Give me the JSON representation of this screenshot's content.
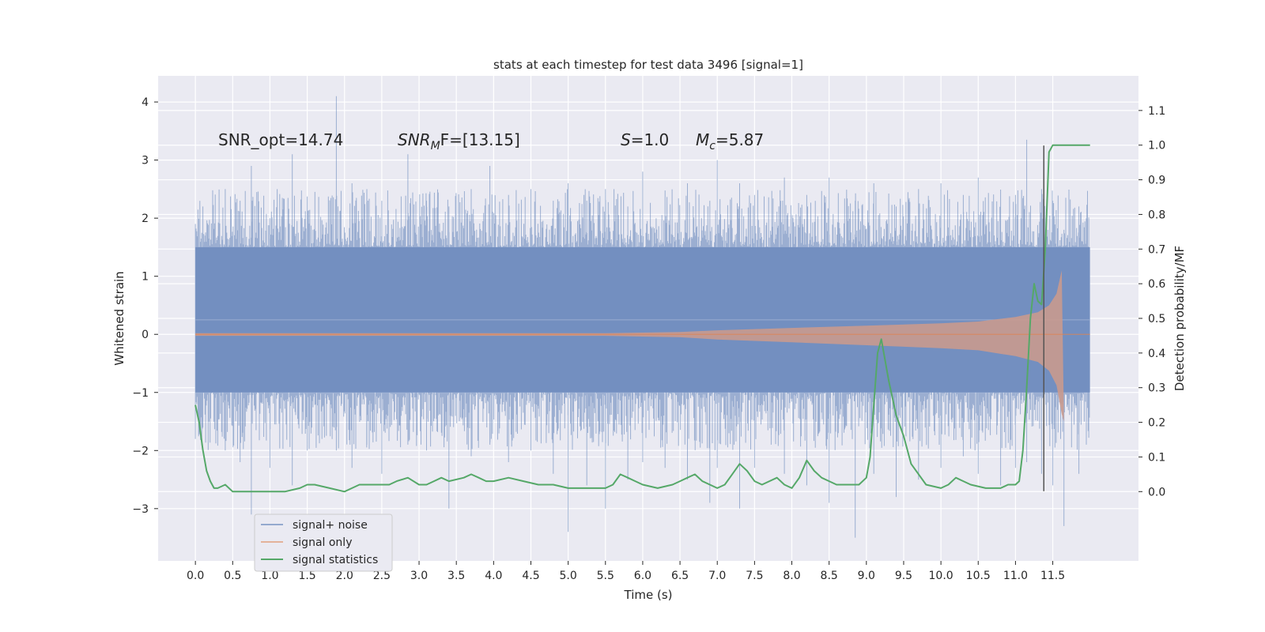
{
  "chart_data": {
    "type": "line",
    "title": "stats at each timestep for test data 3496 [signal=1]",
    "xlabel": "Time (s)",
    "ylabel_left": "Whitened strain",
    "ylabel_right": "Detection probability/MF",
    "xlim": [
      -0.5,
      12.65
    ],
    "ylim_left": [
      -3.9,
      4.45
    ],
    "ylim_right": [
      -0.2,
      1.2
    ],
    "xticks": [
      0.0,
      0.5,
      1.0,
      1.5,
      2.0,
      2.5,
      3.0,
      3.5,
      4.0,
      4.5,
      5.0,
      5.5,
      6.0,
      6.5,
      7.0,
      7.5,
      8.0,
      8.5,
      9.0,
      9.5,
      10.0,
      10.5,
      11.0,
      11.5
    ],
    "xtick_labels": [
      "0.0",
      "0.5",
      "1.0",
      "1.5",
      "2.0",
      "2.5",
      "3.0",
      "3.5",
      "4.0",
      "4.5",
      "5.0",
      "5.5",
      "6.0",
      "6.5",
      "7.0",
      "7.5",
      "8.0",
      "8.5",
      "9.0",
      "9.5",
      "10.0",
      "10.5",
      "11.0",
      "11.5"
    ],
    "yticks_left": [
      -3,
      -2,
      -1,
      0,
      1,
      2,
      3,
      4
    ],
    "ytick_labels_left": [
      "−3",
      "−2",
      "−1",
      "0",
      "1",
      "2",
      "3",
      "4"
    ],
    "yticks_right": [
      0.0,
      0.1,
      0.2,
      0.3,
      0.4,
      0.5,
      0.6,
      0.7,
      0.8,
      0.9,
      1.0,
      1.1
    ],
    "ytick_labels_right": [
      "0.0",
      "0.1",
      "0.2",
      "0.3",
      "0.4",
      "0.5",
      "0.6",
      "0.7",
      "0.8",
      "0.9",
      "1.0",
      "1.1"
    ],
    "grid": true,
    "legend_position": "lower-left",
    "annotations": {
      "snr_opt": "SNR_opt=14.74",
      "snr_mf_var": "SNR",
      "snr_mf_sub": "M",
      "snr_mf_rest": "F=[13.15]",
      "s_var": "S",
      "s_rest": "=1.0",
      "mc_var": "M",
      "mc_sub": "c",
      "mc_rest": "=5.87"
    },
    "marker_line_x": 11.38,
    "series": [
      {
        "name": "signal+ noise",
        "axis": "left",
        "color": "#4c72b0",
        "band_low": -1.0,
        "band_high": 1.5,
        "peaks": [
          [
            0.0,
            1.9,
            -1.8
          ],
          [
            0.1,
            2.2,
            -1.6
          ],
          [
            0.4,
            2.5,
            -2.0
          ],
          [
            0.6,
            2.3,
            -2.2
          ],
          [
            0.75,
            2.9,
            -3.1
          ],
          [
            1.0,
            2.0,
            -2.3
          ],
          [
            1.3,
            3.1,
            -2.6
          ],
          [
            1.5,
            2.2,
            -2.0
          ],
          [
            1.89,
            4.1,
            -2.0
          ],
          [
            2.1,
            2.6,
            -2.3
          ],
          [
            2.3,
            2.5,
            -1.9
          ],
          [
            2.5,
            2.3,
            -2.4
          ],
          [
            2.85,
            3.1,
            -1.9
          ],
          [
            3.1,
            2.3,
            -2.0
          ],
          [
            3.4,
            2.2,
            -3.0
          ],
          [
            3.7,
            2.5,
            -2.1
          ],
          [
            3.95,
            2.9,
            -1.9
          ],
          [
            4.2,
            2.4,
            -2.2
          ],
          [
            4.5,
            2.5,
            -2.0
          ],
          [
            4.8,
            2.3,
            -2.4
          ],
          [
            5.0,
            2.6,
            -3.4
          ],
          [
            5.25,
            2.3,
            -2.6
          ],
          [
            5.5,
            2.5,
            -3.0
          ],
          [
            5.8,
            2.2,
            -2.5
          ],
          [
            6.0,
            2.8,
            -2.2
          ],
          [
            6.3,
            2.4,
            -2.3
          ],
          [
            6.6,
            2.6,
            -2.5
          ],
          [
            6.9,
            2.3,
            -2.9
          ],
          [
            7.0,
            3.0,
            -2.3
          ],
          [
            7.3,
            2.6,
            -3.0
          ],
          [
            7.5,
            2.4,
            -2.3
          ],
          [
            7.9,
            2.7,
            -2.4
          ],
          [
            8.2,
            2.4,
            -2.6
          ],
          [
            8.5,
            2.7,
            -2.9
          ],
          [
            8.85,
            2.3,
            -3.5
          ],
          [
            9.1,
            2.6,
            -2.4
          ],
          [
            9.4,
            2.2,
            -2.8
          ],
          [
            9.7,
            2.5,
            -2.5
          ],
          [
            10.0,
            2.6,
            -2.3
          ],
          [
            10.3,
            2.4,
            -2.1
          ],
          [
            10.5,
            2.7,
            -2.4
          ],
          [
            10.8,
            2.3,
            -2.6
          ],
          [
            11.0,
            2.4,
            -2.3
          ],
          [
            11.15,
            3.35,
            -2.2
          ],
          [
            11.35,
            2.5,
            -2.4
          ],
          [
            11.5,
            2.3,
            -2.6
          ],
          [
            11.65,
            1.8,
            -3.3
          ],
          [
            11.85,
            2.2,
            -2.4
          ],
          [
            11.95,
            2.0,
            -1.9
          ]
        ],
        "x_range": [
          0.0,
          12.0
        ]
      },
      {
        "name": "signal only",
        "axis": "left",
        "color": "#dd8452",
        "envelope": [
          [
            0.0,
            0.02
          ],
          [
            5.5,
            0.02
          ],
          [
            6.5,
            0.04
          ],
          [
            7.0,
            0.07
          ],
          [
            8.0,
            0.11
          ],
          [
            9.0,
            0.15
          ],
          [
            10.0,
            0.19
          ],
          [
            10.5,
            0.22
          ],
          [
            11.0,
            0.3
          ],
          [
            11.3,
            0.38
          ],
          [
            11.45,
            0.5
          ],
          [
            11.55,
            0.7
          ],
          [
            11.62,
            1.1
          ],
          [
            11.65,
            -1.5
          ]
        ],
        "x_range": [
          0.0,
          12.0
        ]
      },
      {
        "name": "signal statistics",
        "axis": "right",
        "color": "#55a868",
        "x": [
          0.0,
          0.05,
          0.1,
          0.15,
          0.2,
          0.25,
          0.3,
          0.4,
          0.5,
          0.7,
          1.0,
          1.2,
          1.4,
          1.5,
          1.6,
          1.8,
          2.0,
          2.1,
          2.2,
          2.4,
          2.6,
          2.7,
          2.85,
          3.0,
          3.1,
          3.2,
          3.3,
          3.4,
          3.6,
          3.7,
          3.8,
          3.9,
          4.0,
          4.2,
          4.4,
          4.6,
          4.8,
          5.0,
          5.2,
          5.3,
          5.5,
          5.6,
          5.7,
          5.8,
          5.9,
          6.0,
          6.2,
          6.4,
          6.5,
          6.6,
          6.7,
          6.8,
          7.0,
          7.1,
          7.2,
          7.3,
          7.4,
          7.5,
          7.6,
          7.8,
          7.9,
          8.0,
          8.1,
          8.2,
          8.3,
          8.4,
          8.5,
          8.6,
          8.8,
          8.9,
          9.0,
          9.05,
          9.1,
          9.15,
          9.2,
          9.3,
          9.4,
          9.5,
          9.6,
          9.8,
          10.0,
          10.1,
          10.2,
          10.3,
          10.4,
          10.6,
          10.8,
          10.9,
          11.0,
          11.05,
          11.1,
          11.15,
          11.2,
          11.25,
          11.3,
          11.35,
          11.4,
          11.45,
          11.5,
          11.6,
          11.7,
          11.8,
          11.9,
          12.0
        ],
        "y": [
          0.25,
          0.2,
          0.12,
          0.06,
          0.03,
          0.01,
          0.01,
          0.02,
          0.0,
          0.0,
          0.0,
          0.0,
          0.01,
          0.02,
          0.02,
          0.01,
          0.0,
          0.01,
          0.02,
          0.02,
          0.02,
          0.03,
          0.04,
          0.02,
          0.02,
          0.03,
          0.04,
          0.03,
          0.04,
          0.05,
          0.04,
          0.03,
          0.03,
          0.04,
          0.03,
          0.02,
          0.02,
          0.01,
          0.01,
          0.01,
          0.01,
          0.02,
          0.05,
          0.04,
          0.03,
          0.02,
          0.01,
          0.02,
          0.03,
          0.04,
          0.05,
          0.03,
          0.01,
          0.02,
          0.05,
          0.08,
          0.06,
          0.03,
          0.02,
          0.04,
          0.02,
          0.01,
          0.04,
          0.09,
          0.06,
          0.04,
          0.03,
          0.02,
          0.02,
          0.02,
          0.04,
          0.1,
          0.25,
          0.4,
          0.44,
          0.32,
          0.22,
          0.16,
          0.08,
          0.02,
          0.01,
          0.02,
          0.04,
          0.03,
          0.02,
          0.01,
          0.01,
          0.02,
          0.02,
          0.03,
          0.12,
          0.3,
          0.5,
          0.6,
          0.55,
          0.54,
          0.7,
          0.98,
          1.0,
          1.0,
          1.0,
          1.0,
          1.0,
          1.0
        ]
      }
    ]
  }
}
